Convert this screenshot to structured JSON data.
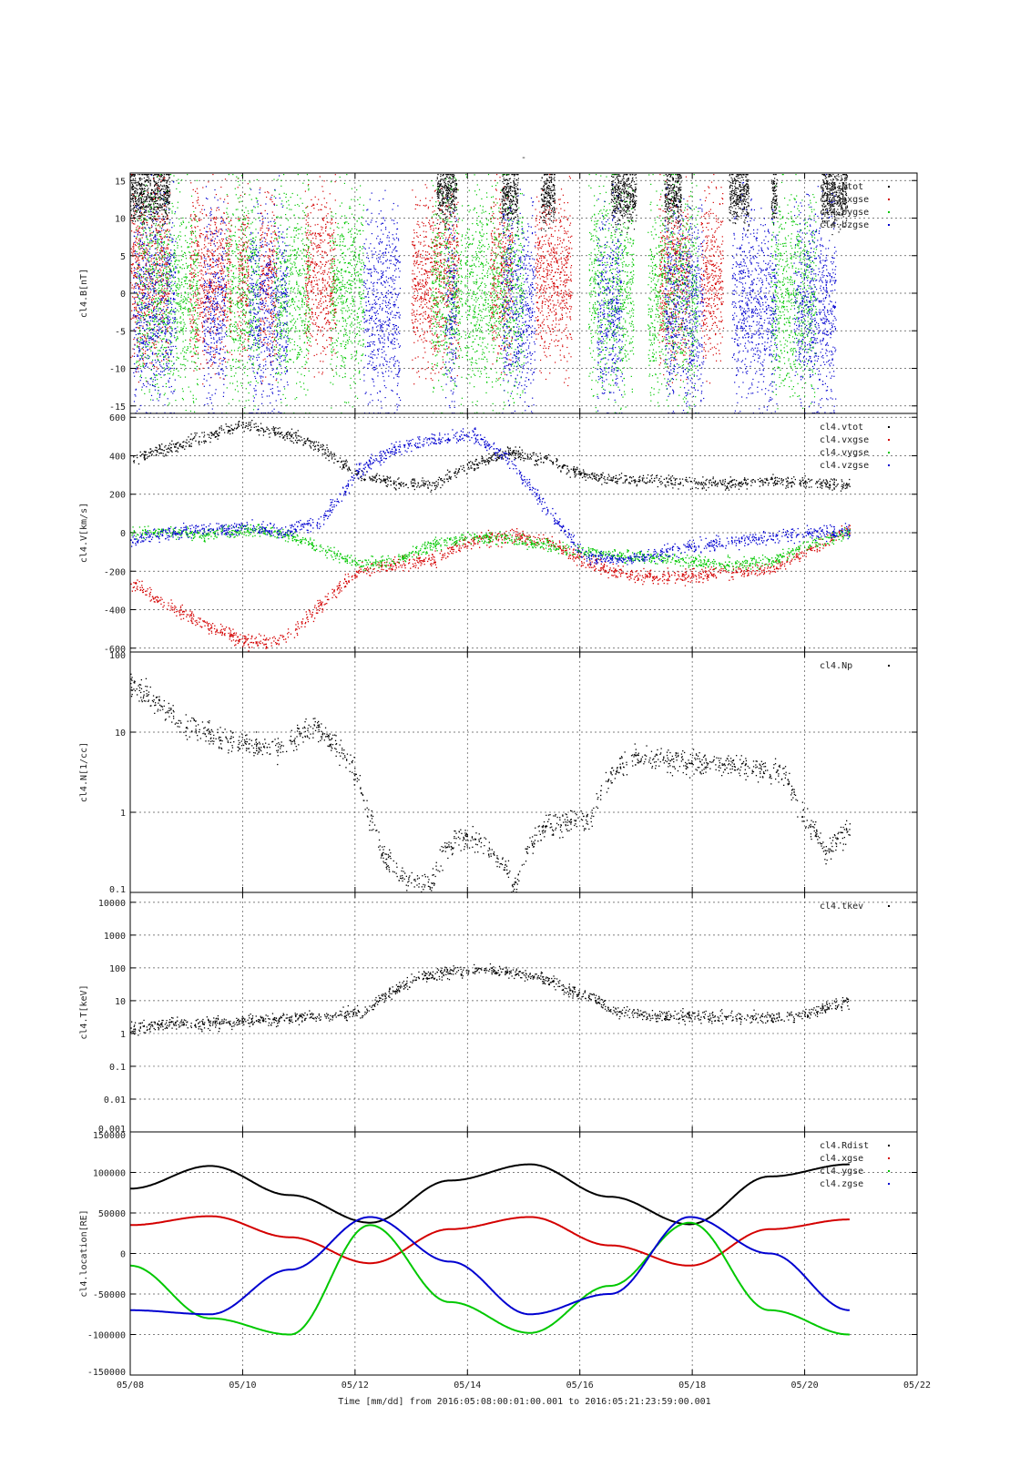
{
  "page_title": "-",
  "colors": {
    "black": "#000000",
    "red": "#d40000",
    "green": "#00c800",
    "blue": "#0000d0"
  },
  "chart_data": [
    {
      "type": "scatter",
      "ylabel": "cl4.B[nT]",
      "ylim": [
        -16,
        16
      ],
      "yticks": [
        -15,
        -10,
        -5,
        0,
        5,
        10,
        15
      ],
      "ytick_labels": [
        "-15",
        "-10",
        "-5",
        "0",
        "5",
        "10",
        "15"
      ],
      "log": false,
      "legend_position": "top-right",
      "series": [
        {
          "name": "cl4.btot",
          "color": "#000000",
          "segments": [
            [
              0.0,
              1.4
            ],
            [
              10.9,
              11.6
            ],
            [
              13.2,
              13.8
            ],
            [
              14.6,
              15.1
            ],
            [
              17.1,
              18.0
            ],
            [
              19.0,
              19.6
            ],
            [
              21.3,
              22.0
            ],
            [
              22.8,
              23.0
            ],
            [
              24.6,
              25.5
            ]
          ],
          "center": 13,
          "spread": 3
        },
        {
          "name": "cl4.bxgse",
          "color": "#d40000",
          "segments": [
            [
              0.0,
              1.4
            ],
            [
              2.1,
              3.6
            ],
            [
              3.8,
              4.2
            ],
            [
              4.6,
              5.2
            ],
            [
              6.2,
              7.3
            ],
            [
              10.0,
              11.7
            ],
            [
              12.8,
              13.6
            ],
            [
              14.4,
              15.7
            ],
            [
              18.8,
              19.9
            ],
            [
              20.3,
              21.1
            ]
          ],
          "center": 2,
          "spread": 9
        },
        {
          "name": "cl4.bygse",
          "color": "#00c800",
          "segments": [
            [
              0.2,
              2.4
            ],
            [
              3.4,
              4.6
            ],
            [
              5.1,
              6.4
            ],
            [
              7.1,
              8.3
            ],
            [
              10.7,
              11.8
            ],
            [
              11.9,
              14.0
            ],
            [
              16.3,
              17.9
            ],
            [
              18.4,
              20.2
            ],
            [
              22.8,
              24.4
            ]
          ],
          "center": 0,
          "spread": 11
        },
        {
          "name": "cl4.bzgse",
          "color": "#0000d0",
          "segments": [
            [
              0.1,
              1.6
            ],
            [
              2.6,
              3.4
            ],
            [
              4.2,
              5.6
            ],
            [
              8.3,
              9.6
            ],
            [
              11.2,
              11.6
            ],
            [
              13.2,
              14.4
            ],
            [
              16.6,
              17.5
            ],
            [
              19.0,
              20.4
            ],
            [
              21.4,
              23.0
            ],
            [
              23.6,
              25.1
            ]
          ],
          "center": -2,
          "spread": 11
        }
      ]
    },
    {
      "type": "scatter",
      "ylabel": "cl4.V[km/s]",
      "ylim": [
        -620,
        620
      ],
      "yticks": [
        -600,
        -400,
        -200,
        0,
        200,
        400,
        600
      ],
      "ytick_labels": [
        "-600",
        "-400",
        "-200",
        "0",
        "200",
        "400",
        "600"
      ],
      "log": false,
      "legend_position": "top-right",
      "series": [
        {
          "name": "cl4.vtot",
          "color": "#000000",
          "values": [
            [
              0.0,
              380
            ],
            [
              0.5,
              440
            ],
            [
              1.0,
              500
            ],
            [
              1.5,
              560
            ],
            [
              2.0,
              520
            ],
            [
              2.5,
              450
            ],
            [
              3.0,
              300
            ],
            [
              3.5,
              260
            ],
            [
              4.0,
              250
            ],
            [
              4.5,
              350
            ],
            [
              5.0,
              420
            ],
            [
              5.5,
              380
            ],
            [
              6.0,
              300
            ],
            [
              6.5,
              280
            ],
            [
              7.0,
              270
            ],
            [
              7.5,
              260
            ],
            [
              8.0,
              260
            ],
            [
              8.5,
              270
            ],
            [
              9.0,
              260
            ],
            [
              9.5,
              250
            ]
          ],
          "spread": 25
        },
        {
          "name": "cl4.vxgse",
          "color": "#d40000",
          "values": [
            [
              0.0,
              -250
            ],
            [
              0.5,
              -380
            ],
            [
              1.0,
              -480
            ],
            [
              1.5,
              -560
            ],
            [
              2.0,
              -560
            ],
            [
              2.5,
              -380
            ],
            [
              3.0,
              -200
            ],
            [
              3.5,
              -160
            ],
            [
              4.0,
              -140
            ],
            [
              4.5,
              -40
            ],
            [
              5.0,
              -20
            ],
            [
              5.5,
              -40
            ],
            [
              6.0,
              -150
            ],
            [
              6.5,
              -210
            ],
            [
              7.0,
              -230
            ],
            [
              7.5,
              -220
            ],
            [
              8.0,
              -200
            ],
            [
              8.5,
              -180
            ],
            [
              9.0,
              -80
            ],
            [
              9.5,
              20
            ]
          ],
          "spread": 30
        },
        {
          "name": "cl4.vygse",
          "color": "#00c800",
          "values": [
            [
              0.0,
              0
            ],
            [
              0.5,
              10
            ],
            [
              1.0,
              -10
            ],
            [
              1.5,
              20
            ],
            [
              2.0,
              0
            ],
            [
              2.5,
              -80
            ],
            [
              3.0,
              -160
            ],
            [
              3.5,
              -140
            ],
            [
              4.0,
              -60
            ],
            [
              4.5,
              -20
            ],
            [
              5.0,
              -30
            ],
            [
              5.5,
              -60
            ],
            [
              6.0,
              -100
            ],
            [
              6.5,
              -120
            ],
            [
              7.0,
              -130
            ],
            [
              7.5,
              -150
            ],
            [
              8.0,
              -160
            ],
            [
              8.5,
              -140
            ],
            [
              9.0,
              -50
            ],
            [
              9.5,
              0
            ]
          ],
          "spread": 25
        },
        {
          "name": "cl4.vzgse",
          "color": "#0000d0",
          "values": [
            [
              0.0,
              -40
            ],
            [
              0.5,
              0
            ],
            [
              1.0,
              20
            ],
            [
              1.5,
              30
            ],
            [
              2.0,
              10
            ],
            [
              2.5,
              60
            ],
            [
              3.0,
              320
            ],
            [
              3.5,
              440
            ],
            [
              4.0,
              480
            ],
            [
              4.5,
              520
            ],
            [
              5.0,
              380
            ],
            [
              5.5,
              120
            ],
            [
              6.0,
              -120
            ],
            [
              6.5,
              -140
            ],
            [
              7.0,
              -100
            ],
            [
              7.5,
              -60
            ],
            [
              8.0,
              -40
            ],
            [
              8.5,
              -20
            ],
            [
              9.0,
              0
            ],
            [
              9.5,
              10
            ]
          ],
          "spread": 30
        }
      ]
    },
    {
      "type": "scatter",
      "ylabel": "cl4.N[1/cc]",
      "ylim": [
        0.1,
        100
      ],
      "yticks": [
        0.1,
        1,
        10,
        100
      ],
      "ytick_labels": [
        "0.1",
        "1",
        "10",
        "100"
      ],
      "log": true,
      "legend_position": "top-right",
      "series": [
        {
          "name": "cl4.Np",
          "color": "#000000",
          "values": [
            [
              0.0,
              40
            ],
            [
              0.3,
              25
            ],
            [
              0.6,
              12
            ],
            [
              1.0,
              9
            ],
            [
              1.4,
              7
            ],
            [
              1.8,
              6
            ],
            [
              2.2,
              12
            ],
            [
              2.5,
              6
            ],
            [
              2.8,
              1.2
            ],
            [
              3.0,
              0.3
            ],
            [
              3.3,
              0.14
            ],
            [
              3.6,
              0.12
            ],
            [
              3.9,
              0.5
            ],
            [
              4.2,
              0.4
            ],
            [
              4.6,
              0.12
            ],
            [
              5.0,
              0.7
            ],
            [
              5.5,
              0.8
            ],
            [
              6.0,
              5
            ],
            [
              6.5,
              4.5
            ],
            [
              7.0,
              4
            ],
            [
              7.5,
              3.5
            ],
            [
              7.8,
              3
            ],
            [
              8.0,
              1
            ],
            [
              8.3,
              0.3
            ],
            [
              8.6,
              0.6
            ]
          ],
          "spread": 0.12
        }
      ]
    },
    {
      "type": "scatter",
      "ylabel": "cl4.T[keV]",
      "ylim": [
        0.001,
        20000
      ],
      "yticks": [
        0.001,
        0.01,
        0.1,
        1,
        10,
        100,
        1000,
        10000
      ],
      "ytick_labels": [
        "0.001",
        "0.01",
        "0.1",
        "1",
        "10",
        "100",
        "1000",
        "10000"
      ],
      "log": true,
      "legend_position": "top-right",
      "series": [
        {
          "name": "cl4.tkev",
          "color": "#000000",
          "values": [
            [
              0.0,
              1.5
            ],
            [
              0.5,
              2
            ],
            [
              1.0,
              2
            ],
            [
              1.5,
              2.5
            ],
            [
              2.0,
              3
            ],
            [
              2.5,
              3.5
            ],
            [
              3.0,
              5
            ],
            [
              3.3,
              20
            ],
            [
              3.6,
              50
            ],
            [
              4.0,
              80
            ],
            [
              4.5,
              90
            ],
            [
              5.0,
              60
            ],
            [
              5.5,
              20
            ],
            [
              6.0,
              5
            ],
            [
              6.5,
              3.5
            ],
            [
              7.0,
              3.5
            ],
            [
              7.5,
              3.2
            ],
            [
              8.0,
              3
            ],
            [
              8.5,
              4
            ],
            [
              9.0,
              10
            ]
          ],
          "spread": 0.15
        }
      ]
    },
    {
      "type": "line",
      "ylabel": "cl4.location[RE]",
      "xlabel": "Time [mm/dd]  from 2016:05:08:00:01:00.001  to  2016:05:21:23:59:00.001",
      "ylim": [
        -150000,
        150000
      ],
      "yticks": [
        -150000,
        -100000,
        -50000,
        0,
        50000,
        100000,
        150000
      ],
      "ytick_labels": [
        "-150000",
        "-100000",
        "-50000",
        "0",
        "50000",
        "100000",
        "150000"
      ],
      "log": false,
      "legend_position": "top-right",
      "x_ticks": [
        "05/08",
        "05/10",
        "05/12",
        "05/14",
        "05/16",
        "05/18",
        "05/20",
        "05/22"
      ],
      "series": [
        {
          "name": "cl4.Rdist",
          "color": "#000000",
          "values": [
            [
              0,
              80000
            ],
            [
              2,
              108000
            ],
            [
              4,
              72000
            ],
            [
              6,
              38000
            ],
            [
              8,
              90000
            ],
            [
              10,
              110000
            ],
            [
              12,
              70000
            ],
            [
              14,
              36000
            ],
            [
              16,
              95000
            ],
            [
              18,
              110000
            ]
          ]
        },
        {
          "name": "cl4.xgse",
          "color": "#d40000",
          "values": [
            [
              0,
              35000
            ],
            [
              2,
              46000
            ],
            [
              4,
              20000
            ],
            [
              6,
              -12000
            ],
            [
              8,
              30000
            ],
            [
              10,
              45000
            ],
            [
              12,
              10000
            ],
            [
              14,
              -15000
            ],
            [
              16,
              30000
            ],
            [
              18,
              42000
            ]
          ]
        },
        {
          "name": "cl4.ygse",
          "color": "#00c800",
          "values": [
            [
              0,
              -15000
            ],
            [
              2,
              -80000
            ],
            [
              4,
              -100000
            ],
            [
              6,
              35000
            ],
            [
              8,
              -60000
            ],
            [
              10,
              -98000
            ],
            [
              12,
              -40000
            ],
            [
              14,
              38000
            ],
            [
              16,
              -70000
            ],
            [
              18,
              -100000
            ]
          ]
        },
        {
          "name": "cl4.zgse",
          "color": "#0000d0",
          "values": [
            [
              0,
              -70000
            ],
            [
              2,
              -75000
            ],
            [
              4,
              -20000
            ],
            [
              6,
              45000
            ],
            [
              8,
              -10000
            ],
            [
              10,
              -75000
            ],
            [
              12,
              -50000
            ],
            [
              14,
              45000
            ],
            [
              16,
              0
            ],
            [
              18,
              -70000
            ]
          ]
        }
      ]
    }
  ]
}
